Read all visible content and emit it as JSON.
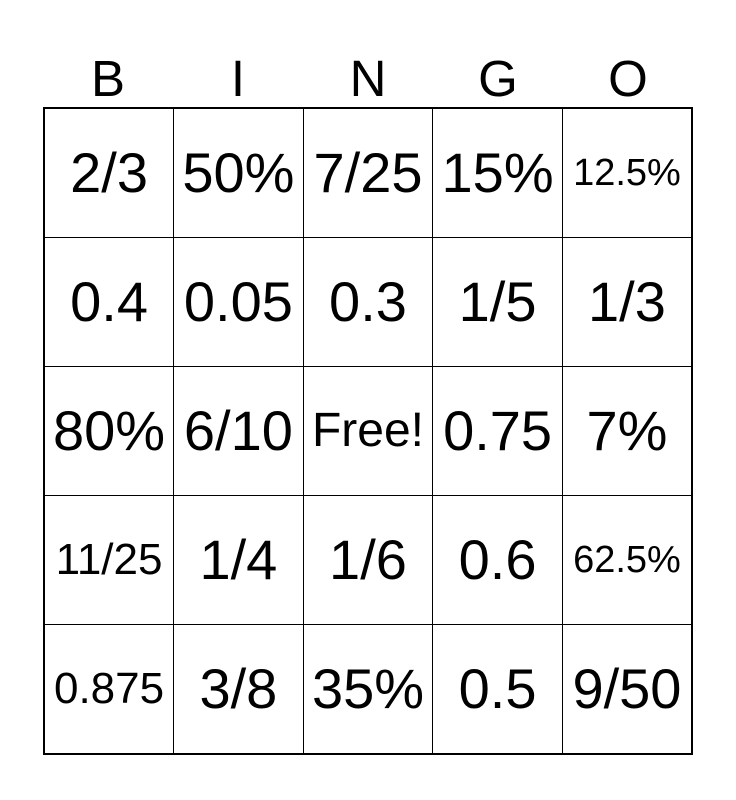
{
  "header": {
    "letters": [
      "B",
      "I",
      "N",
      "G",
      "O"
    ]
  },
  "grid": {
    "rows": [
      [
        "2/3",
        "50%",
        "7/25",
        "15%",
        "12.5%"
      ],
      [
        "0.4",
        "0.05",
        "0.3",
        "1/5",
        "1/3"
      ],
      [
        "80%",
        "6/10",
        "Free!",
        "0.75",
        "7%"
      ],
      [
        "11/25",
        "1/4",
        "1/6",
        "0.6",
        "62.5%"
      ],
      [
        "0.875",
        "3/8",
        "35%",
        "0.5",
        "9/50"
      ]
    ],
    "free_space_label": "Free!"
  },
  "colors": {
    "text": "#000000",
    "border": "#000000",
    "background": "#ffffff"
  }
}
